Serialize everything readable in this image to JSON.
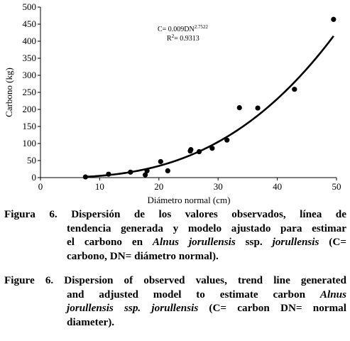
{
  "chart_data": {
    "type": "scatter",
    "xlabel": "Diámetro normal (cm)",
    "ylabel": "Carbono (kg)",
    "xlim": [
      0,
      50
    ],
    "ylim": [
      0,
      500
    ],
    "x_ticks": [
      "0",
      "10",
      "20",
      "30",
      "40",
      "50"
    ],
    "y_ticks": [
      "0",
      "50",
      "100",
      "150",
      "200",
      "250",
      "300",
      "350",
      "400",
      "450",
      "500"
    ],
    "points": [
      {
        "x": 7.6,
        "y": 2
      },
      {
        "x": 11.5,
        "y": 10
      },
      {
        "x": 15.2,
        "y": 16
      },
      {
        "x": 17.7,
        "y": 8
      },
      {
        "x": 18.0,
        "y": 20
      },
      {
        "x": 20.3,
        "y": 47
      },
      {
        "x": 21.5,
        "y": 20
      },
      {
        "x": 25.3,
        "y": 78
      },
      {
        "x": 25.4,
        "y": 82
      },
      {
        "x": 26.8,
        "y": 76
      },
      {
        "x": 29.0,
        "y": 86
      },
      {
        "x": 31.5,
        "y": 110
      },
      {
        "x": 33.6,
        "y": 205
      },
      {
        "x": 36.7,
        "y": 204
      },
      {
        "x": 42.9,
        "y": 259
      },
      {
        "x": 49.5,
        "y": 464
      }
    ],
    "trend": {
      "a": 0.009,
      "b": 2.7522,
      "x_start": 7.5,
      "x_end": 49.5
    },
    "equation": "C= 0.009DN",
    "exponent": "2.7522",
    "r2_prefix": "R",
    "r2_sup": "2",
    "r2_value": "= 0.9313"
  },
  "caption_es": {
    "line1": "Figura 6. Dispersión de los valores observados, línea de",
    "line2": "tendencia generada y modelo ajustado para estimar",
    "line3_pre": "el carbono en ",
    "line3_species": "Alnus jorullensis",
    "line3_mid": " ssp. ",
    "line3_sub": "jorullensis",
    "line3_post": " (C=",
    "line4": "carbono, DN= diámetro normal)."
  },
  "caption_en": {
    "line1": "Figure 6. Dispersion of observed values, trend line generated",
    "line2_pre": "and adjusted model to estimate carbon ",
    "line2_genus": "Alnus",
    "line3_italic": "jorullensis ssp. jorullensis",
    "line3_post": " (C= carbon DN= normal",
    "line4": "diameter)."
  }
}
